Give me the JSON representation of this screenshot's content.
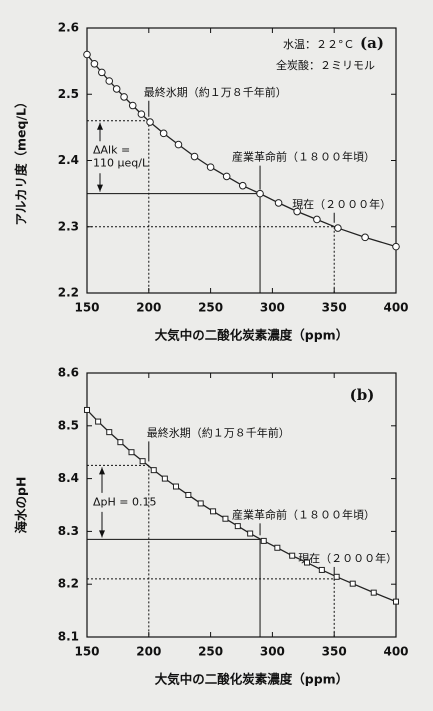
{
  "chart_data": [
    {
      "type": "line",
      "panel_label": "(a)",
      "notes": [
        "水温：２２°Ｃ",
        "全炭酸：２ミリモル"
      ],
      "x_label": "大気中の二酸化炭素濃度（ppm）",
      "y_label": "アルカリ度（meq/L）",
      "xlim": [
        150,
        400
      ],
      "xticks": [
        150,
        200,
        250,
        300,
        350,
        400
      ],
      "ylim": [
        2.2,
        2.6
      ],
      "yticks": [
        2.2,
        2.3,
        2.4,
        2.5,
        2.6
      ],
      "marker": "circle",
      "color": "#222222",
      "x": [
        150,
        156,
        162,
        168,
        174,
        180,
        187,
        194,
        201,
        212,
        224,
        237,
        250,
        263,
        276,
        290,
        305,
        320,
        336,
        353,
        375,
        400
      ],
      "values": [
        2.56,
        2.546,
        2.533,
        2.52,
        2.508,
        2.496,
        2.483,
        2.47,
        2.458,
        2.441,
        2.424,
        2.406,
        2.39,
        2.376,
        2.362,
        2.35,
        2.336,
        2.323,
        2.311,
        2.298,
        2.284,
        2.27
      ],
      "markers": [
        {
          "x": 200,
          "y": 2.46,
          "label": "最終氷期（約１万８千年前）",
          "line": "dotted"
        },
        {
          "x": 290,
          "y": 2.35,
          "label": "産業革命前（１８００年頃）",
          "line": "solid"
        },
        {
          "x": 350,
          "y": 2.3,
          "label": "現在（２０００年）",
          "line": "dotted"
        }
      ],
      "delta_label": [
        "ΔAlk =",
        "110 μeq/L"
      ]
    },
    {
      "type": "line",
      "panel_label": "(b)",
      "x_label": "大気中の二酸化炭素濃度（ppm）",
      "y_label": "海水のpH",
      "xlim": [
        150,
        400
      ],
      "xticks": [
        150,
        200,
        250,
        300,
        350,
        400
      ],
      "ylim": [
        8.1,
        8.6
      ],
      "yticks": [
        8.1,
        8.2,
        8.3,
        8.4,
        8.5,
        8.6
      ],
      "marker": "square",
      "color": "#222222",
      "x": [
        150,
        159,
        168,
        177,
        186,
        195,
        204,
        213,
        222,
        232,
        242,
        252,
        262,
        272,
        282,
        293,
        304,
        316,
        328,
        340,
        352,
        365,
        382,
        400
      ],
      "values": [
        8.53,
        8.508,
        8.488,
        8.469,
        8.45,
        8.433,
        8.416,
        8.4,
        8.385,
        8.369,
        8.353,
        8.338,
        8.324,
        8.31,
        8.296,
        8.282,
        8.269,
        8.254,
        8.241,
        8.227,
        8.214,
        8.201,
        8.184,
        8.167
      ],
      "markers": [
        {
          "x": 200,
          "y": 8.425,
          "label": "最終氷期（約１万８千年前）",
          "line": "dotted"
        },
        {
          "x": 290,
          "y": 8.285,
          "label": "産業革命前（１８００年頃）",
          "line": "solid"
        },
        {
          "x": 350,
          "y": 8.21,
          "label": "現在（２０００年）",
          "line": "dotted"
        }
      ],
      "delta_label": [
        "ΔpH = 0.15"
      ]
    }
  ]
}
